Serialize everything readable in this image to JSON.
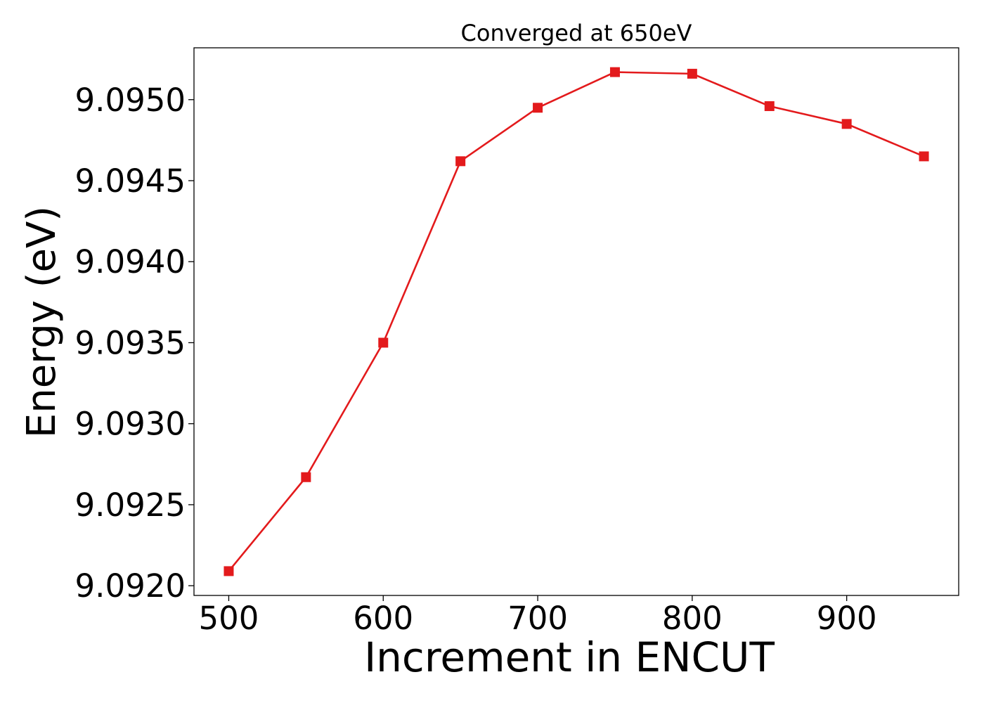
{
  "chart_data": {
    "type": "line",
    "title": "Converged at 650eV",
    "xlabel": "Increment in ENCUT",
    "ylabel": "Energy (eV)",
    "x": [
      500,
      550,
      600,
      650,
      700,
      750,
      800,
      850,
      900,
      950
    ],
    "series": [
      {
        "values": [
          9.09209,
          9.09267,
          9.0935,
          9.09462,
          9.09495,
          9.09517,
          9.09516,
          9.09496,
          9.09485,
          9.09465
        ],
        "color": "#e31a1c",
        "marker": "square"
      }
    ],
    "xticks": [
      500,
      600,
      700,
      800,
      900
    ],
    "xtick_labels": [
      "500",
      "600",
      "700",
      "800",
      "900"
    ],
    "yticks": [
      9.092,
      9.0925,
      9.093,
      9.0935,
      9.094,
      9.0945,
      9.095
    ],
    "ytick_labels": [
      "9.0920",
      "9.0925",
      "9.0930",
      "9.0935",
      "9.0940",
      "9.0945",
      "9.0950"
    ],
    "xlim": [
      477.5,
      972.5
    ],
    "ylim": [
      9.09194,
      9.09532
    ],
    "grid": false,
    "legend": false
  }
}
